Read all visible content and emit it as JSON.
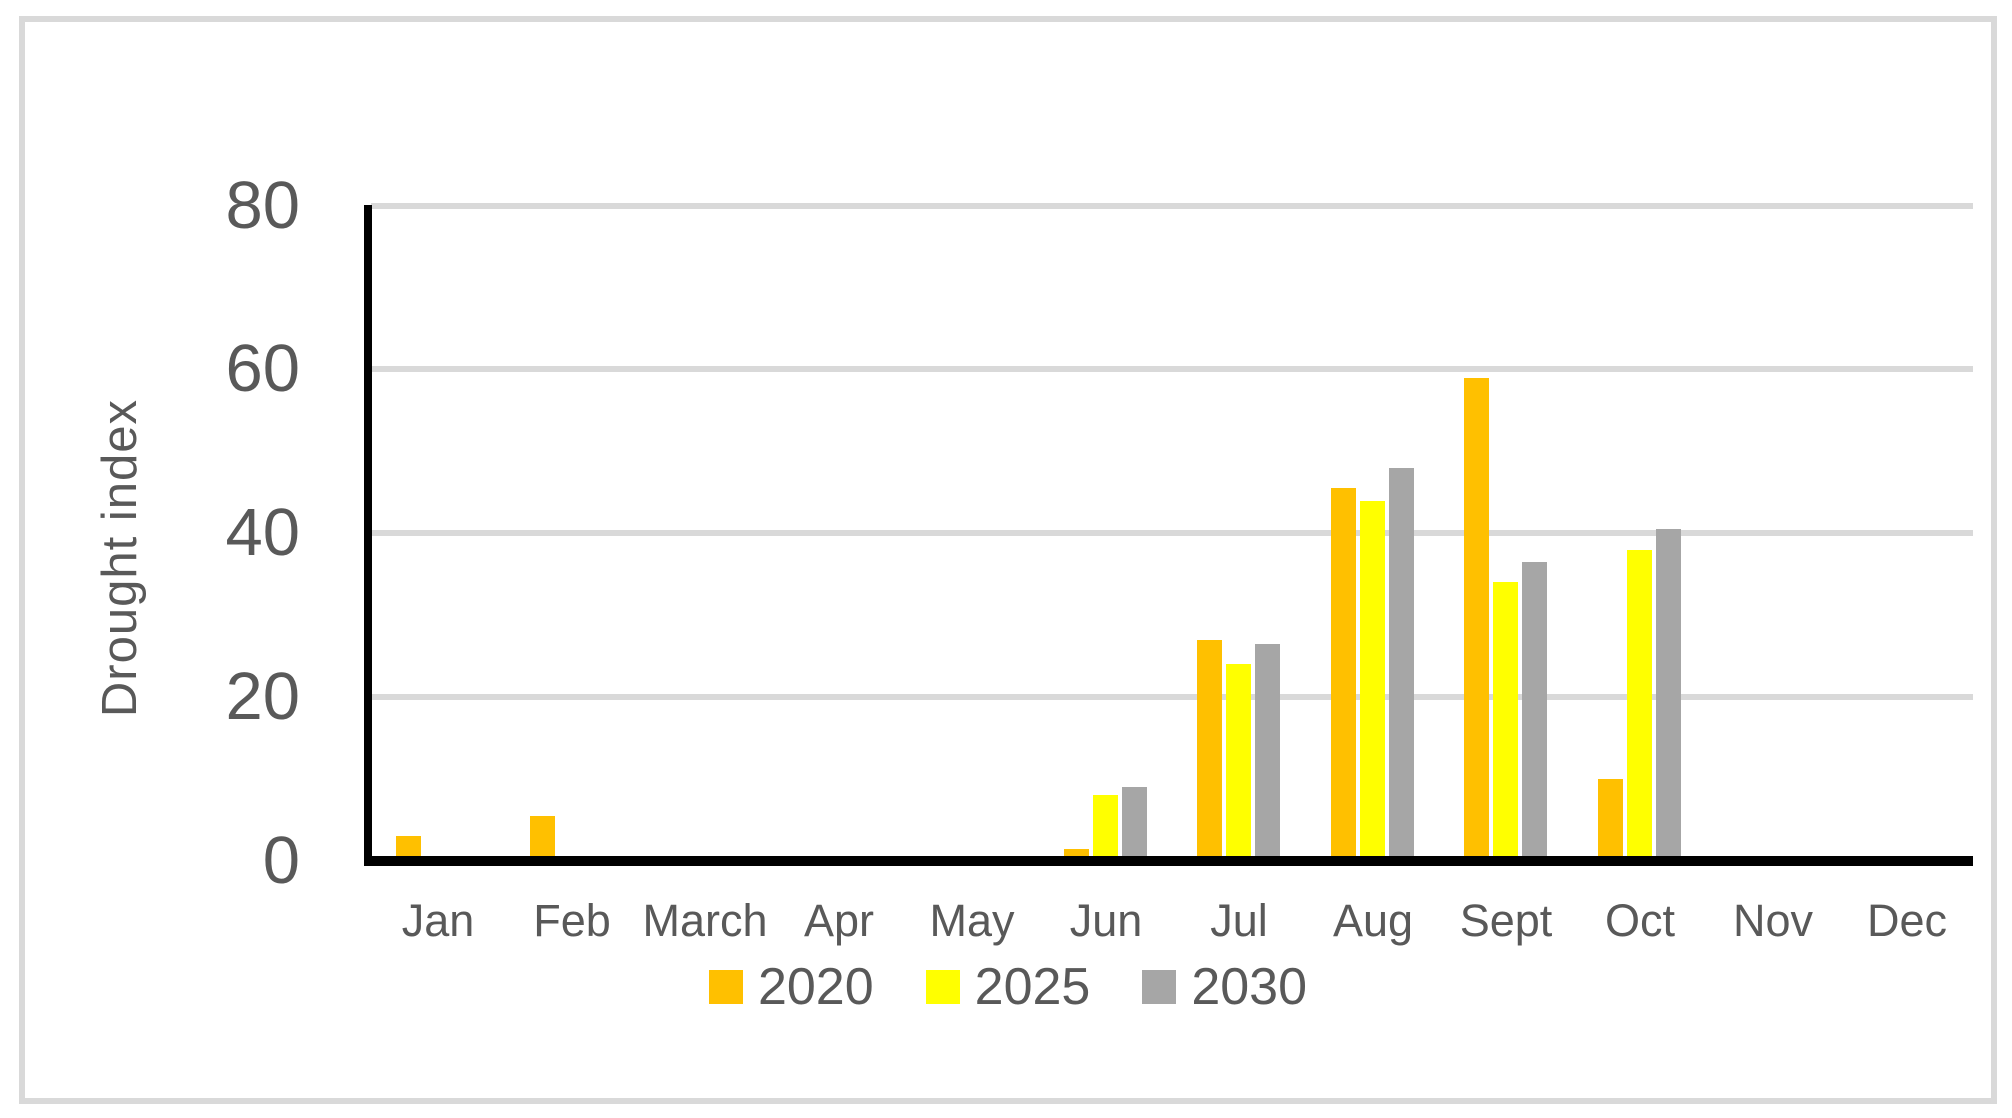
{
  "chart_data": {
    "type": "bar",
    "title": "",
    "ylabel": "Drought index",
    "xlabel": "",
    "categories": [
      "Jan",
      "Feb",
      "March",
      "Apr",
      "May",
      "Jun",
      "Jul",
      "Aug",
      "Sept",
      "Oct",
      "Nov",
      "Dec"
    ],
    "series": [
      {
        "name": "2020",
        "color": "#FFC000",
        "values": [
          3,
          5.5,
          0,
          0,
          0,
          1.5,
          27,
          45.5,
          59,
          10,
          0,
          0
        ]
      },
      {
        "name": "2025",
        "color": "#FFFF00",
        "values": [
          0,
          0,
          0,
          0,
          0,
          8,
          24,
          44,
          34,
          38,
          0,
          0
        ]
      },
      {
        "name": "2030",
        "color": "#A6A6A6",
        "values": [
          0,
          0,
          0,
          0,
          0,
          9,
          26.5,
          48,
          36.5,
          40.5,
          0,
          0
        ]
      }
    ],
    "ylim": [
      0,
      80
    ],
    "yticks": [
      0,
      20,
      40,
      60,
      80
    ],
    "grid": true,
    "legend_position": "bottom"
  },
  "colors": {
    "axis_text": "#595959",
    "gridline": "#D9D9D9",
    "axis_line": "#000000",
    "figure_border": "#D9D9D9",
    "background": "#FFFFFF"
  }
}
